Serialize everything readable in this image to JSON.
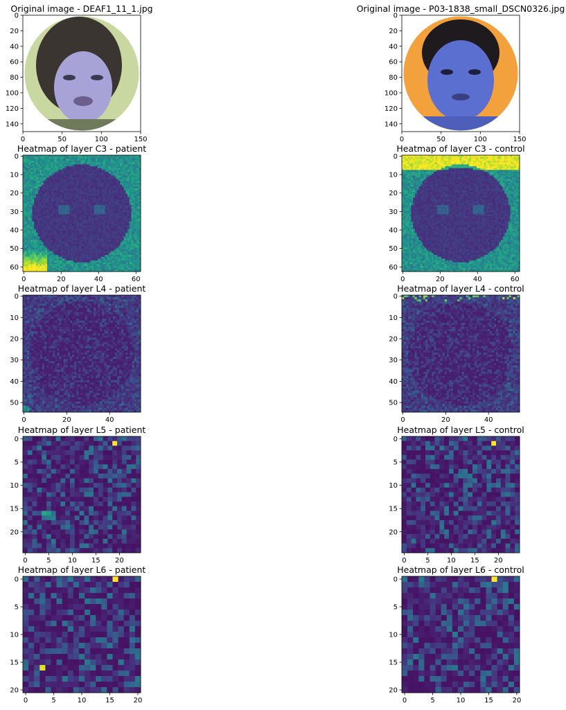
{
  "chart_data": [
    {
      "type": "heatmap",
      "title": "Original image - DEAF1_11_1.jpg",
      "content": "photo",
      "xlim": [
        0,
        150
      ],
      "ylim": [
        150,
        0
      ],
      "xticks": [
        0,
        50,
        100,
        150
      ],
      "yticks": [
        0,
        20,
        40,
        60,
        80,
        100,
        120,
        140
      ]
    },
    {
      "type": "heatmap",
      "title": "Original image - P03-1838_small_DSCN0326.jpg",
      "content": "photo",
      "xlim": [
        0,
        150
      ],
      "ylim": [
        150,
        0
      ],
      "xticks": [
        0,
        50,
        100,
        150
      ],
      "yticks": [
        0,
        20,
        40,
        60,
        80,
        100,
        120,
        140
      ]
    },
    {
      "type": "heatmap",
      "title": "Heatmap of layer C3 - patient",
      "grid_size": 63,
      "colormap": "viridis",
      "xticks": [
        0,
        20,
        40,
        60
      ],
      "yticks": [
        0,
        10,
        20,
        30,
        40,
        50,
        60
      ]
    },
    {
      "type": "heatmap",
      "title": "Heatmap of layer C3 - control",
      "grid_size": 63,
      "colormap": "viridis",
      "xticks": [
        0,
        20,
        40,
        60
      ],
      "yticks": [
        0,
        10,
        20,
        30,
        40,
        50,
        60
      ]
    },
    {
      "type": "heatmap",
      "title": "Heatmap of layer L4 - patient",
      "grid_size": 55,
      "colormap": "viridis",
      "xticks": [
        0,
        20,
        40
      ],
      "yticks": [
        0,
        10,
        20,
        30,
        40,
        50
      ]
    },
    {
      "type": "heatmap",
      "title": "Heatmap of layer L4 - control",
      "grid_size": 55,
      "colormap": "viridis",
      "xticks": [
        0,
        20,
        40
      ],
      "yticks": [
        0,
        10,
        20,
        30,
        40,
        50
      ]
    },
    {
      "type": "heatmap",
      "title": "Heatmap of layer L5 - patient",
      "grid_size": 25,
      "colormap": "viridis",
      "xticks": [
        0,
        5,
        10,
        15,
        20
      ],
      "yticks": [
        0,
        5,
        10,
        15,
        20
      ]
    },
    {
      "type": "heatmap",
      "title": "Heatmap of layer L5 - control",
      "grid_size": 25,
      "colormap": "viridis",
      "xticks": [
        0,
        5,
        10,
        15,
        20
      ],
      "yticks": [
        0,
        5,
        10,
        15,
        20
      ]
    },
    {
      "type": "heatmap",
      "title": "Heatmap of layer L6 - patient",
      "grid_size": 21,
      "colormap": "viridis",
      "xticks": [
        0,
        5,
        10,
        15,
        20
      ],
      "yticks": [
        0,
        5,
        10,
        15,
        20
      ]
    },
    {
      "type": "heatmap",
      "title": "Heatmap of layer L6 - control",
      "grid_size": 21,
      "colormap": "viridis",
      "xticks": [
        0,
        5,
        10,
        15,
        20
      ],
      "yticks": [
        0,
        5,
        10,
        15,
        20
      ]
    }
  ]
}
